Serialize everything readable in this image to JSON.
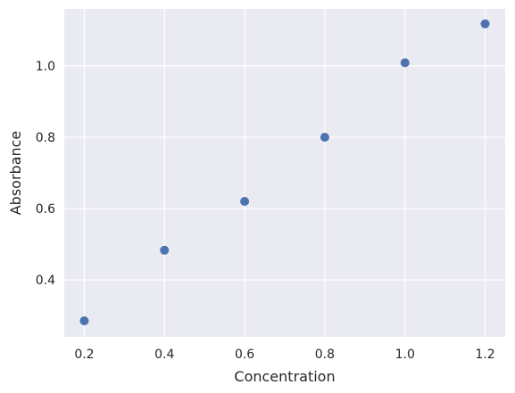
{
  "chart_data": {
    "type": "scatter",
    "title": "",
    "xlabel": "Concentration",
    "ylabel": "Absorbance",
    "x": [
      0.2,
      0.4,
      0.6,
      0.8,
      1.0,
      1.2
    ],
    "y": [
      0.285,
      0.483,
      0.62,
      0.8,
      1.009,
      1.118
    ],
    "xlim": [
      0.15,
      1.25
    ],
    "ylim": [
      0.24,
      1.16
    ],
    "xticks": [
      "0.2",
      "0.4",
      "0.6",
      "0.8",
      "1.0",
      "1.2"
    ],
    "yticks": [
      "0.4",
      "0.6",
      "0.8",
      "1.0"
    ],
    "grid": true,
    "style": {
      "background": "#eaeaf2",
      "grid_color": "#ffffff",
      "marker_color": "#4c72b0",
      "text_color": "#262626"
    }
  }
}
